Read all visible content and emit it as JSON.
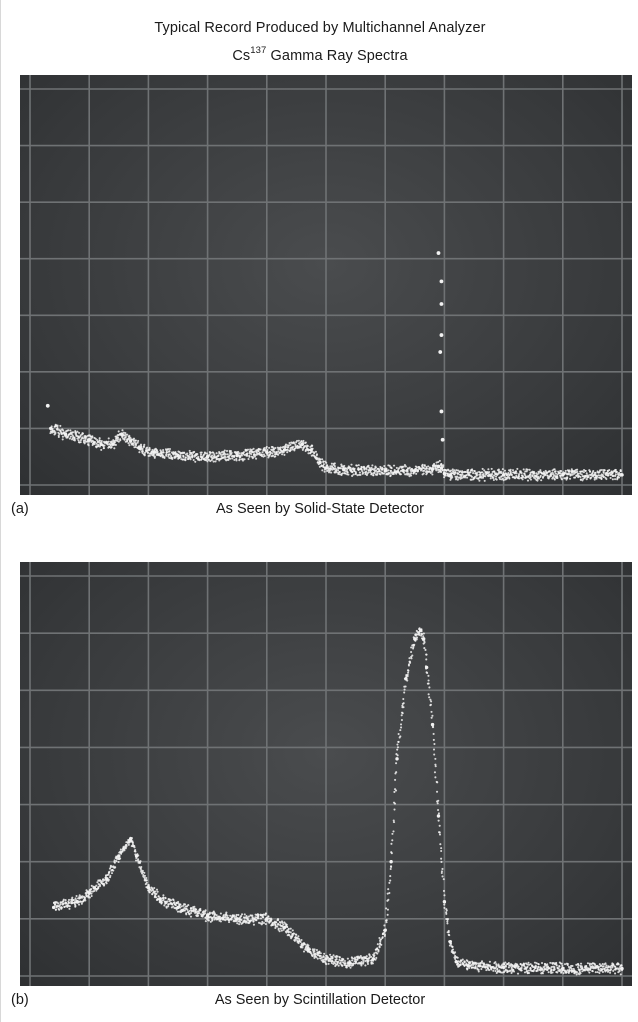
{
  "figure": {
    "title_line1": "Typical Record Produced by Multichannel Analyzer",
    "title_element": "Cs",
    "title_isotope": "137",
    "title_suffix": " Gamma Ray Spectra"
  },
  "colors": {
    "screen": "#3c3e40",
    "grid": "#6f7274",
    "trace": "#f2f2f2"
  },
  "chart_data": [
    {
      "type": "scatter",
      "panel_label": "(a)",
      "caption": "As Seen by Solid-State Detector",
      "grid": true,
      "grid_divisions": {
        "x": 10,
        "y": 7
      },
      "xlim": [
        0,
        10
      ],
      "ylim": [
        0,
        7
      ],
      "x": [
        0.35,
        0.6,
        1.0,
        1.2,
        1.4,
        1.55,
        1.7,
        1.85,
        2.1,
        2.5,
        3.0,
        3.5,
        4.0,
        4.3,
        4.6,
        4.75,
        4.9,
        5.0,
        5.3,
        6.0,
        6.5,
        6.8,
        6.9,
        6.95,
        7.0,
        7.1,
        8.0,
        9.0,
        10.0
      ],
      "y": [
        1.0,
        0.9,
        0.8,
        0.72,
        0.72,
        0.9,
        0.78,
        0.65,
        0.58,
        0.52,
        0.5,
        0.52,
        0.58,
        0.62,
        0.72,
        0.62,
        0.4,
        0.3,
        0.27,
        0.25,
        0.25,
        0.28,
        0.33,
        0.3,
        0.2,
        0.18,
        0.18,
        0.18,
        0.18
      ],
      "isolated_points": {
        "x": [
          0.3,
          6.9,
          6.95,
          6.95,
          6.95,
          6.93,
          6.95,
          6.97
        ],
        "y": [
          1.4,
          4.1,
          3.6,
          3.2,
          2.65,
          2.35,
          1.3,
          0.8
        ]
      }
    },
    {
      "type": "scatter",
      "panel_label": "(b)",
      "caption": "As Seen by Scintillation Detector",
      "grid": true,
      "grid_divisions": {
        "x": 10,
        "y": 7
      },
      "xlim": [
        0,
        10
      ],
      "ylim": [
        0,
        7
      ],
      "x": [
        0.4,
        0.8,
        1.0,
        1.3,
        1.5,
        1.7,
        1.8,
        2.0,
        2.2,
        2.5,
        3.0,
        3.5,
        4.0,
        4.3,
        4.7,
        5.0,
        5.4,
        5.8,
        6.0,
        6.1,
        6.2,
        6.35,
        6.5,
        6.6,
        6.65,
        6.7,
        6.8,
        6.9,
        7.0,
        7.1,
        7.2,
        7.4,
        8.0,
        9.0,
        10.0
      ],
      "y": [
        1.2,
        1.3,
        1.45,
        1.7,
        2.1,
        2.4,
        2.1,
        1.55,
        1.35,
        1.2,
        1.05,
        1.0,
        1.0,
        0.85,
        0.45,
        0.3,
        0.23,
        0.3,
        0.8,
        2.0,
        3.8,
        5.2,
        5.9,
        6.05,
        5.9,
        5.4,
        4.4,
        2.8,
        1.3,
        0.6,
        0.25,
        0.18,
        0.15,
        0.13,
        0.13
      ]
    }
  ]
}
